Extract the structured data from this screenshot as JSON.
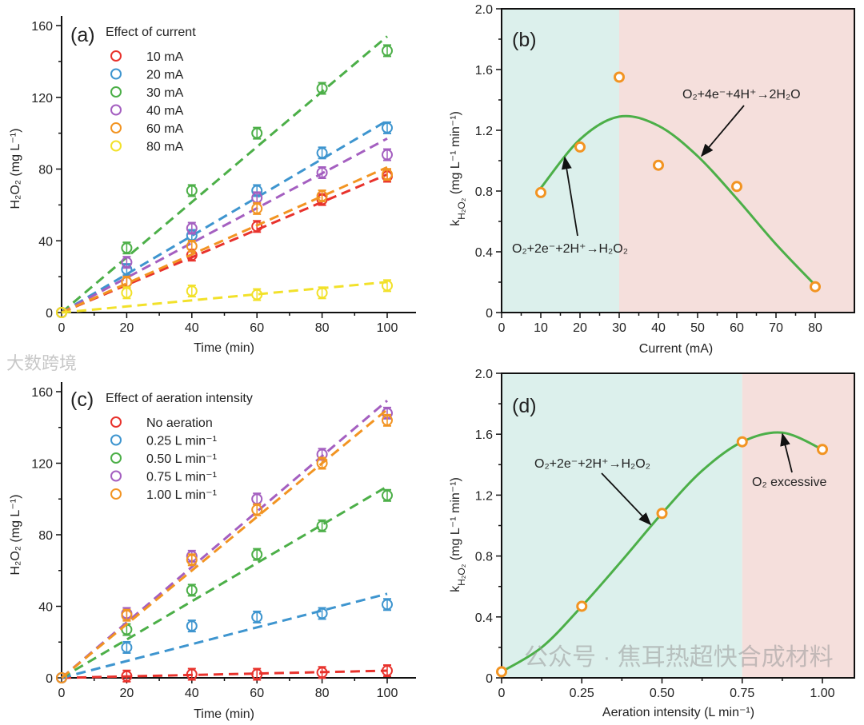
{
  "chart_data": [
    {
      "panel": "(a)",
      "type": "scatter",
      "title": "Effect of current",
      "xlabel": "Time (min)",
      "ylabel": "H₂O₂ (mg L⁻¹)",
      "xlim": [
        0,
        100
      ],
      "ylim": [
        0,
        160
      ],
      "xticks": [
        "0",
        "20",
        "40",
        "60",
        "80",
        "100"
      ],
      "yticks": [
        "0",
        "40",
        "80",
        "120",
        "160"
      ],
      "x": [
        0,
        20,
        40,
        60,
        80,
        100
      ],
      "legend_position": "top-left",
      "series": [
        {
          "name": "10 mA",
          "color": "#e8322c",
          "values": [
            0,
            17,
            32,
            48,
            63,
            76
          ],
          "fit_slope": 0.77
        },
        {
          "name": "20 mA",
          "color": "#3e95cf",
          "values": [
            0,
            24,
            43,
            68,
            89,
            103
          ],
          "fit_slope": 1.07
        },
        {
          "name": "30 mA",
          "color": "#4caf48",
          "values": [
            0,
            36,
            68,
            100,
            125,
            146
          ],
          "fit_slope": 1.54
        },
        {
          "name": "40 mA",
          "color": "#a45fc0",
          "values": [
            0,
            28,
            47,
            64,
            78,
            88
          ],
          "fit_slope": 0.97
        },
        {
          "name": "60 mA",
          "color": "#f29422",
          "values": [
            0,
            17,
            37,
            58,
            65,
            77
          ],
          "fit_slope": 0.81
        },
        {
          "name": "80 mA",
          "color": "#f2e12a",
          "values": [
            0,
            11,
            12,
            10,
            11,
            15
          ],
          "fit_slope": 0.17
        }
      ]
    },
    {
      "panel": "(b)",
      "type": "scatter",
      "xlabel": "Current (mA)",
      "ylabel": {
        "k": "k",
        "sub": "H₂O₂",
        "rest": " (mg L⁻¹ min⁻¹)"
      },
      "xlim": [
        0,
        90
      ],
      "ylim": [
        0,
        2.0
      ],
      "xticks": [
        "0",
        "10",
        "20",
        "30",
        "40",
        "50",
        "60",
        "70",
        "80"
      ],
      "yticks": [
        "0",
        "0.4",
        "0.8",
        "1.2",
        "1.6",
        "2.0"
      ],
      "regions": [
        {
          "from": 0,
          "to": 30,
          "color": "#dcf0ec"
        },
        {
          "from": 30,
          "to": 90,
          "color": "#f5dfdc"
        }
      ],
      "points": {
        "x": [
          10,
          20,
          30,
          40,
          60,
          80
        ],
        "y": [
          0.79,
          1.09,
          1.55,
          0.97,
          0.83,
          0.17
        ],
        "color": "#f29422"
      },
      "fit_curve": {
        "x": [
          10,
          20,
          30,
          40,
          50,
          60,
          70,
          80
        ],
        "y": [
          0.82,
          1.14,
          1.29,
          1.23,
          1.03,
          0.75,
          0.45,
          0.18
        ],
        "color": "#4caf48"
      },
      "annotations": [
        "O₂+4e⁻+4H⁺→2H₂O",
        "O₂+2e⁻+2H⁺→H₂O₂"
      ]
    },
    {
      "panel": "(c)",
      "type": "scatter",
      "title": "Effect of aeration intensity",
      "xlabel": "Time (min)",
      "ylabel": "H₂O₂ (mg L⁻¹)",
      "xlim": [
        0,
        100
      ],
      "ylim": [
        0,
        160
      ],
      "xticks": [
        "0",
        "20",
        "40",
        "60",
        "80",
        "100"
      ],
      "yticks": [
        "0",
        "40",
        "80",
        "120",
        "160"
      ],
      "x": [
        0,
        20,
        40,
        60,
        80,
        100
      ],
      "legend_position": "top-left",
      "series": [
        {
          "name": "No aeration",
          "color": "#e8322c",
          "values": [
            0,
            1,
            2,
            2,
            3,
            4
          ],
          "fit_slope": 0.04
        },
        {
          "name": "0.25 L min⁻¹",
          "color": "#3e95cf",
          "values": [
            0,
            17,
            29,
            34,
            36,
            41
          ],
          "fit_slope": 0.47
        },
        {
          "name": "0.50 L min⁻¹",
          "color": "#4caf48",
          "values": [
            0,
            27,
            49,
            69,
            85,
            102
          ],
          "fit_slope": 1.07
        },
        {
          "name": "0.75 L min⁻¹",
          "color": "#a45fc0",
          "values": [
            0,
            36,
            68,
            100,
            125,
            148
          ],
          "fit_slope": 1.55
        },
        {
          "name": "1.00 L min⁻¹",
          "color": "#f29422",
          "values": [
            0,
            35,
            66,
            94,
            120,
            144
          ],
          "fit_slope": 1.5
        }
      ]
    },
    {
      "panel": "(d)",
      "type": "scatter",
      "xlabel": "Aeration intensity (L min⁻¹)",
      "ylabel": {
        "k": "k",
        "sub": "H₂O₂",
        "rest": " (mg L⁻¹ min⁻¹)"
      },
      "xlim": [
        0,
        1.1
      ],
      "ylim": [
        0,
        2.0
      ],
      "xticks": [
        "0",
        "0.25",
        "0.50",
        "0.75",
        "1.00"
      ],
      "yticks": [
        "0",
        "0.4",
        "0.8",
        "1.2",
        "1.6",
        "2.0"
      ],
      "regions": [
        {
          "from": 0,
          "to": 0.75,
          "color": "#dcf0ec"
        },
        {
          "from": 0.75,
          "to": 1.1,
          "color": "#f5dfdc"
        }
      ],
      "points": {
        "x": [
          0,
          0.25,
          0.5,
          0.75,
          1.0
        ],
        "y": [
          0.04,
          0.47,
          1.08,
          1.55,
          1.5
        ],
        "color": "#f29422"
      },
      "fit_curve": {
        "x": [
          0,
          0.125,
          0.25,
          0.375,
          0.5,
          0.625,
          0.75,
          0.875,
          1.0
        ],
        "y": [
          0.04,
          0.2,
          0.47,
          0.77,
          1.08,
          1.36,
          1.55,
          1.61,
          1.5
        ],
        "color": "#4caf48"
      },
      "annotations": [
        "O₂+2e⁻+2H⁺→H₂O₂",
        "O₂ excessive"
      ]
    }
  ],
  "watermarks": [
    "公众号 · 焦耳热超快合成材料",
    "大数跨境"
  ]
}
